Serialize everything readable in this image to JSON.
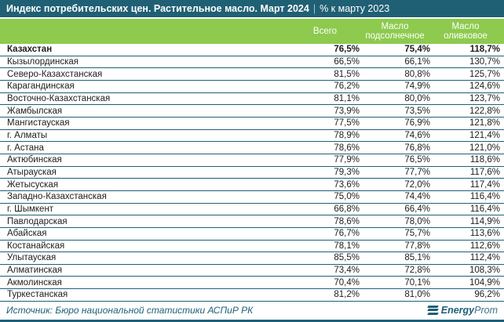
{
  "title": {
    "main": "Индекс потребительских цен. Растительное масло. Март 2024",
    "divider": "|",
    "suffix": "% к марту 2023"
  },
  "chart_data": {
    "type": "table",
    "title": "Индекс потребительских цен. Растительное масло. Март 2024 | % к марту 2023",
    "columns": [
      "",
      "Всего",
      "Масло подсолнечное",
      "Масло оливковое"
    ],
    "rows": [
      {
        "region": "Казахстан",
        "bold": true,
        "values": [
          "76,5%",
          "75,4%",
          "118,7%"
        ]
      },
      {
        "region": "Кызылординская",
        "bold": false,
        "values": [
          "66,5%",
          "66,1%",
          "130,7%"
        ]
      },
      {
        "region": "Северо-Казахстанская",
        "bold": false,
        "values": [
          "81,5%",
          "80,8%",
          "125,7%"
        ]
      },
      {
        "region": "Карагандинская",
        "bold": false,
        "values": [
          "76,2%",
          "74,9%",
          "124,6%"
        ]
      },
      {
        "region": "Восточно-Казахстанская",
        "bold": false,
        "values": [
          "81,1%",
          "80,0%",
          "123,7%"
        ]
      },
      {
        "region": "Жамбылская",
        "bold": false,
        "values": [
          "73,9%",
          "73,5%",
          "122,8%"
        ]
      },
      {
        "region": "Мангистауская",
        "bold": false,
        "values": [
          "77,5%",
          "76,9%",
          "121,8%"
        ]
      },
      {
        "region": "г. Алматы",
        "bold": false,
        "values": [
          "78,9%",
          "74,6%",
          "121,4%"
        ]
      },
      {
        "region": "г. Астана",
        "bold": false,
        "values": [
          "78,6%",
          "76,8%",
          "121,0%"
        ]
      },
      {
        "region": "Актюбинская",
        "bold": false,
        "values": [
          "77,9%",
          "76,5%",
          "118,6%"
        ]
      },
      {
        "region": "Атырауская",
        "bold": false,
        "values": [
          "79,3%",
          "77,7%",
          "117,6%"
        ]
      },
      {
        "region": "Жетысуская",
        "bold": false,
        "values": [
          "73,6%",
          "72,0%",
          "117,4%"
        ]
      },
      {
        "region": "Западно-Казахстанская",
        "bold": false,
        "values": [
          "75,0%",
          "74,4%",
          "116,4%"
        ]
      },
      {
        "region": "г. Шымкент",
        "bold": false,
        "values": [
          "66,8%",
          "66,4%",
          "116,4%"
        ]
      },
      {
        "region": "Павлодарская",
        "bold": false,
        "values": [
          "78,6%",
          "78,0%",
          "114,9%"
        ]
      },
      {
        "region": "Абайская",
        "bold": false,
        "values": [
          "76,7%",
          "75,7%",
          "113,6%"
        ]
      },
      {
        "region": "Костанайская",
        "bold": false,
        "values": [
          "78,1%",
          "77,8%",
          "112,6%"
        ]
      },
      {
        "region": "Улытауская",
        "bold": false,
        "values": [
          "85,5%",
          "85,1%",
          "112,4%"
        ]
      },
      {
        "region": "Алматинская",
        "bold": false,
        "values": [
          "73,4%",
          "72,8%",
          "108,3%"
        ]
      },
      {
        "region": "Акмолинская",
        "bold": false,
        "values": [
          "70,4%",
          "70,1%",
          "104,9%"
        ]
      },
      {
        "region": "Туркестанская",
        "bold": false,
        "values": [
          "81,2%",
          "81,0%",
          "96,2%"
        ]
      }
    ]
  },
  "footer": {
    "source": "Источник: Бюро национальной статистики АСПиР РК",
    "logo_bold": "Energy",
    "logo_light": "Prom"
  },
  "colors": {
    "teal": "#206074",
    "green": "#8dca4e",
    "row_line": "#1e6077",
    "text": "#1d1d1d"
  }
}
